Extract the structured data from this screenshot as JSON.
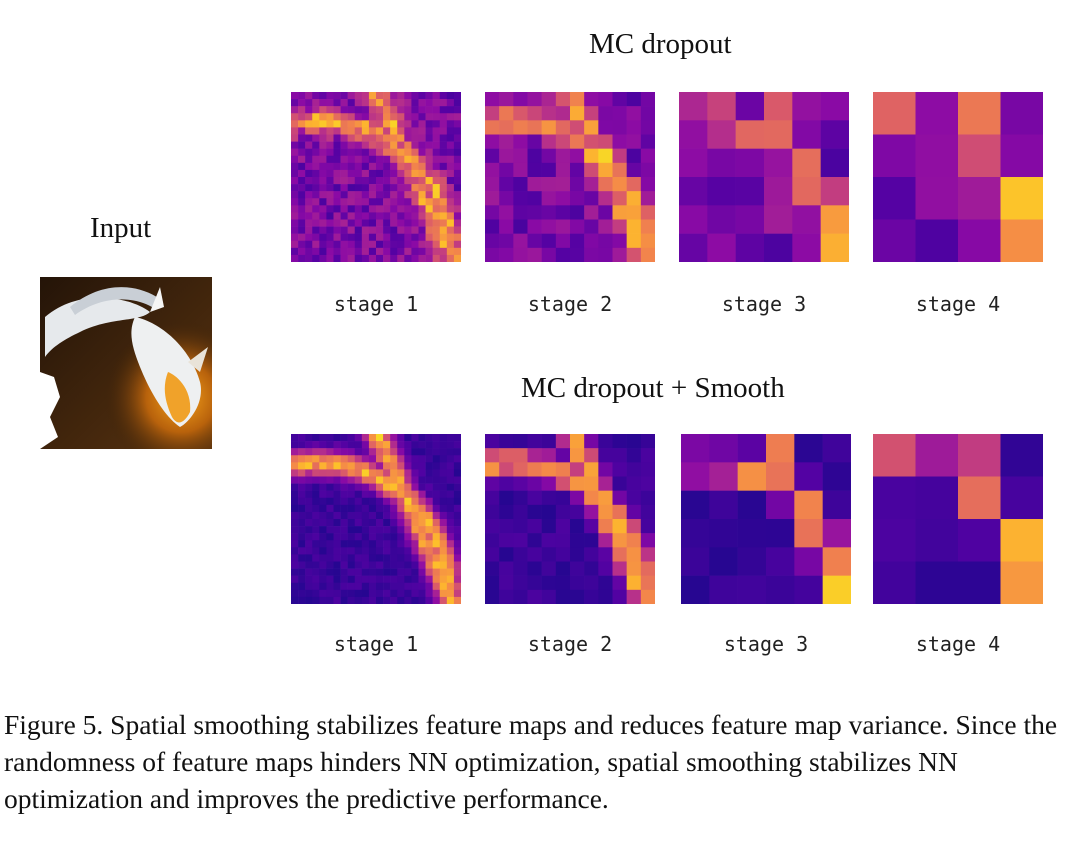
{
  "figure": {
    "input_label": "Input",
    "rows": [
      {
        "title": "MC dropout",
        "stages": [
          {
            "label": "stage 1",
            "grid": 24
          },
          {
            "label": "stage 2",
            "grid": 12
          },
          {
            "label": "stage 3",
            "grid": 6
          },
          {
            "label": "stage 4",
            "grid": 4
          }
        ]
      },
      {
        "title": "MC dropout + Smooth",
        "stages": [
          {
            "label": "stage 1",
            "grid": 24
          },
          {
            "label": "stage 2",
            "grid": 12
          },
          {
            "label": "stage 3",
            "grid": 6
          },
          {
            "label": "stage 4",
            "grid": 4
          }
        ]
      }
    ],
    "colormap": "plasma",
    "caption": "Figure 5. Spatial smoothing stabilizes feature maps and reduces feature map variance. Since the randomness of feature maps hinders NN optimization, spatial smoothing stabilizes NN optimization and improves the predictive performance."
  }
}
